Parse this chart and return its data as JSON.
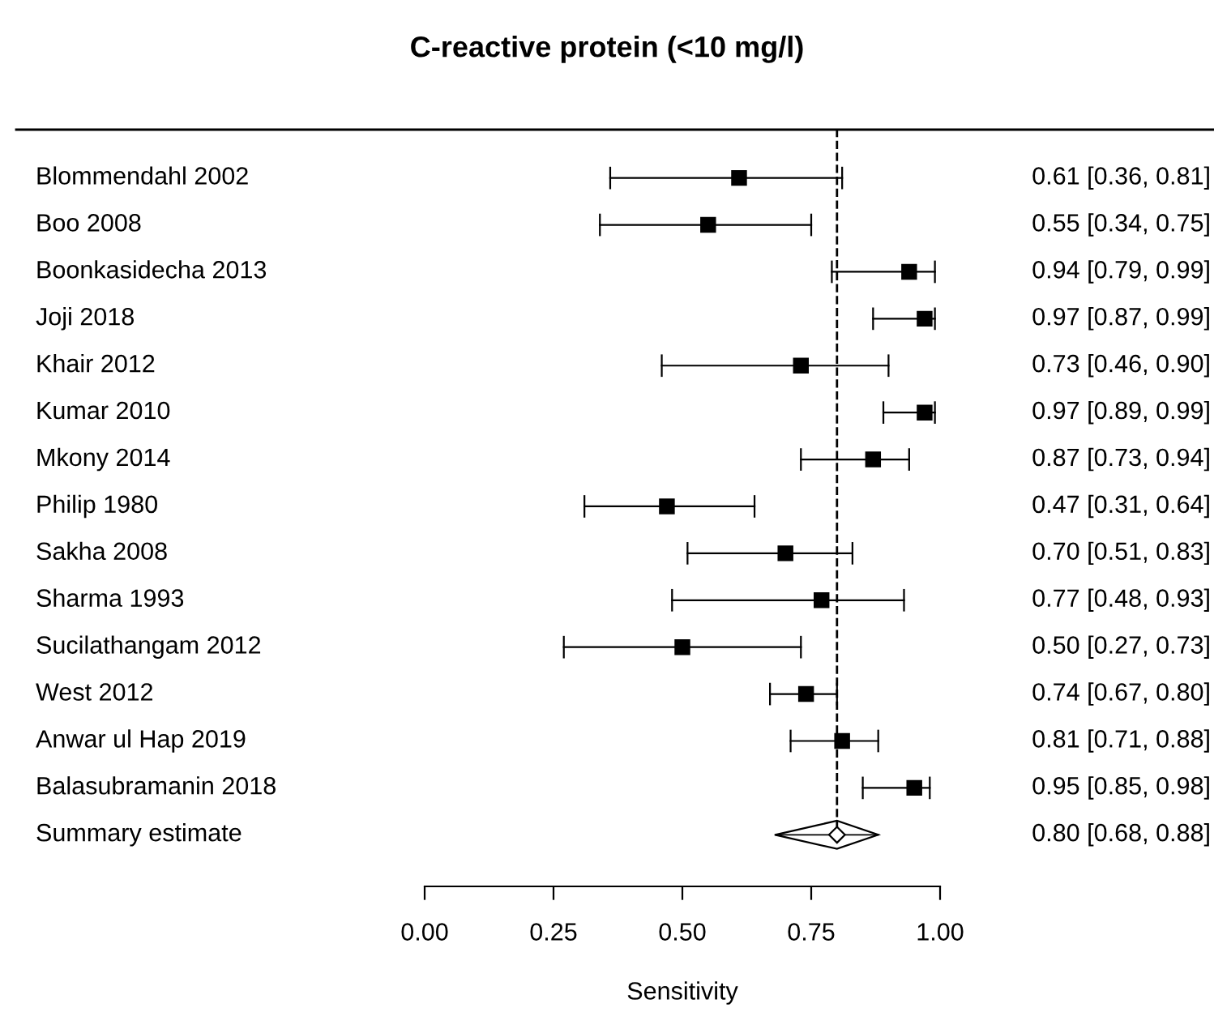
{
  "chart_data": {
    "type": "scatter",
    "orientation": "horizontal",
    "title": "C-reactive protein (<10 mg/l)",
    "xlabel": "Sensitivity",
    "categories": [
      "Blommendahl 2002",
      "Boo 2008",
      "Boonkasidecha 2013",
      "Joji 2018",
      "Khair 2012",
      "Kumar 2010",
      "Mkony 2014",
      "Philip 1980",
      "Sakha 2008",
      "Sharma 1993",
      "Sucilathangam 2012",
      "West 2012",
      "Anwar ul Hap 2019",
      "Balasubramanin 2018",
      "Summary estimate"
    ],
    "series": [
      {
        "type": "scatter",
        "marker": "square",
        "color": "#000000",
        "values": [
          0.61,
          0.55,
          0.94,
          0.97,
          0.73,
          0.97,
          0.87,
          0.47,
          0.7,
          0.77,
          0.5,
          0.74,
          0.81,
          0.95,
          null
        ],
        "errors": [
          [
            0.36,
            0.81
          ],
          [
            0.34,
            0.75
          ],
          [
            0.79,
            0.99
          ],
          [
            0.87,
            0.99
          ],
          [
            0.46,
            0.9
          ],
          [
            0.89,
            0.99
          ],
          [
            0.73,
            0.94
          ],
          [
            0.31,
            0.64
          ],
          [
            0.51,
            0.83
          ],
          [
            0.48,
            0.93
          ],
          [
            0.27,
            0.73
          ],
          [
            0.67,
            0.8
          ],
          [
            0.71,
            0.88
          ],
          [
            0.85,
            0.98
          ],
          null
        ]
      },
      {
        "type": "scatter",
        "marker": "diamond",
        "color": "#000000",
        "values": [
          null,
          null,
          null,
          null,
          null,
          null,
          null,
          null,
          null,
          null,
          null,
          null,
          null,
          null,
          0.8
        ],
        "errors": [
          null,
          null,
          null,
          null,
          null,
          null,
          null,
          null,
          null,
          null,
          null,
          null,
          null,
          null,
          [
            0.68,
            0.88
          ]
        ]
      }
    ],
    "value_labels": [
      "0.61 [0.36, 0.81]",
      "0.55 [0.34, 0.75]",
      "0.94 [0.79, 0.99]",
      "0.97 [0.87, 0.99]",
      "0.73 [0.46, 0.90]",
      "0.97 [0.89, 0.99]",
      "0.87 [0.73, 0.94]",
      "0.47 [0.31, 0.64]",
      "0.70 [0.51, 0.83]",
      "0.77 [0.48, 0.93]",
      "0.50 [0.27, 0.73]",
      "0.74 [0.67, 0.80]",
      "0.81 [0.71, 0.88]",
      "0.95 [0.85, 0.98]",
      "0.80 [0.68, 0.88]"
    ],
    "xlim": [
      0,
      1
    ],
    "xticks": [
      {
        "value": 0,
        "label": "0.00"
      },
      {
        "value": 0.25,
        "label": "0.25"
      },
      {
        "value": 0.5,
        "label": "0.50"
      },
      {
        "value": 0.75,
        "label": "0.75"
      },
      {
        "value": 1,
        "label": "1.00"
      }
    ],
    "ref_lines": [
      {
        "axis": "x",
        "value": 0.8,
        "label": null,
        "line_style": "dashed",
        "color": "#000000"
      }
    ],
    "grid": false,
    "legend": false
  }
}
